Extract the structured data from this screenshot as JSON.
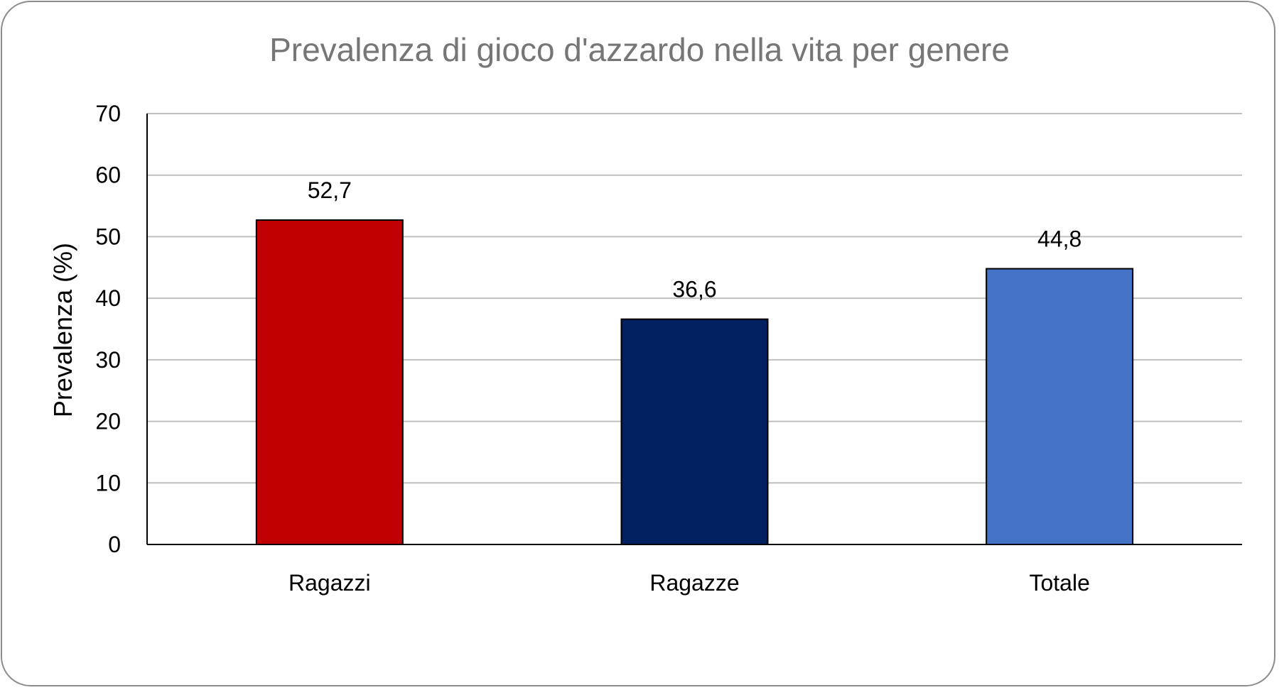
{
  "chart_data": {
    "type": "bar",
    "title": "Prevalenza di gioco d'azzardo nella vita per genere",
    "xlabel": "",
    "ylabel": "Prevalenza (%)",
    "categories": [
      "Ragazzi",
      "Ragazze",
      "Totale"
    ],
    "values": [
      52.7,
      36.6,
      44.8
    ],
    "value_labels": [
      "52,7",
      "36,6",
      "44,8"
    ],
    "bar_colors": [
      "#c00000",
      "#002060",
      "#4472c4"
    ],
    "ylim": [
      0,
      70
    ],
    "yticks": [
      0,
      10,
      20,
      30,
      40,
      50,
      60,
      70
    ],
    "grid": true,
    "legend": "none"
  }
}
